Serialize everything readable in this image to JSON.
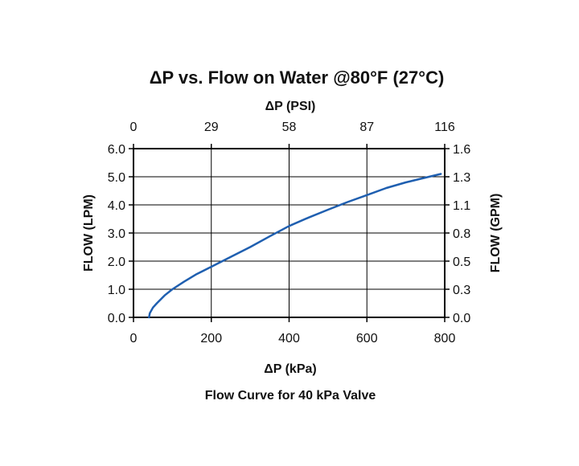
{
  "chart_data": {
    "type": "line",
    "title": "ΔP vs. Flow on Water @80°F (27°C)",
    "caption": "Flow Curve for 40 kPa Valve",
    "xlabel": "ΔP (kPa)",
    "x_top_label": "ΔP (PSI)",
    "ylabel": "FLOW (LPM)",
    "y_right_label": "FLOW (GPM)",
    "xlim": [
      0,
      800
    ],
    "ylim": [
      0,
      6
    ],
    "x_ticks": [
      0,
      200,
      400,
      600,
      800
    ],
    "x_tick_labels": [
      "0",
      "200",
      "400",
      "600",
      "800"
    ],
    "x_top_tick_labels": [
      "0",
      "29",
      "58",
      "87",
      "116"
    ],
    "y_ticks": [
      0,
      1,
      2,
      3,
      4,
      5,
      6
    ],
    "y_tick_labels": [
      "0.0",
      "1.0",
      "2.0",
      "3.0",
      "4.0",
      "5.0",
      "6.0"
    ],
    "y_right_tick_labels": [
      "0.0",
      "0.3",
      "0.5",
      "0.8",
      "1.1",
      "1.3",
      "1.6"
    ],
    "grid": true,
    "series": [
      {
        "color": "#1f5fb0",
        "x": [
          40,
          42,
          50,
          60,
          80,
          100,
          130,
          160,
          200,
          250,
          300,
          350,
          400,
          450,
          500,
          550,
          600,
          650,
          700,
          750,
          790
        ],
        "y": [
          0.0,
          0.15,
          0.35,
          0.5,
          0.78,
          1.0,
          1.27,
          1.52,
          1.8,
          2.15,
          2.5,
          2.88,
          3.25,
          3.55,
          3.83,
          4.1,
          4.35,
          4.6,
          4.8,
          4.97,
          5.1
        ]
      }
    ]
  }
}
